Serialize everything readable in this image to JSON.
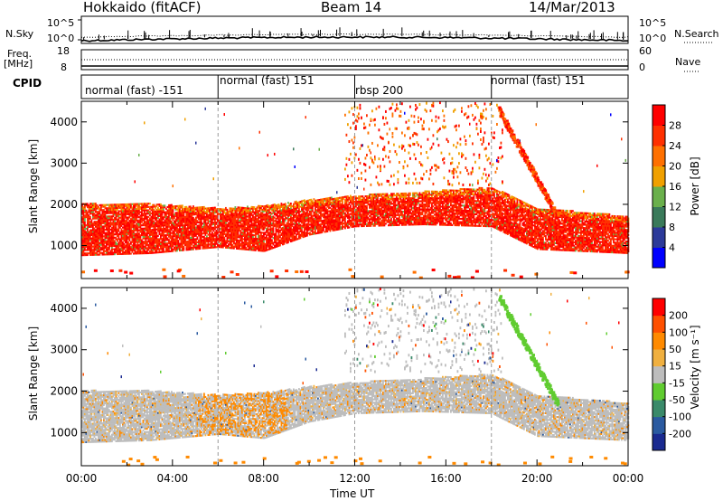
{
  "header": {
    "radar": "Hokkaido (fitACF)",
    "beam": "Beam 14",
    "date": "14/Mar/2013"
  },
  "noise_panel": {
    "left_label": "N.Sky",
    "right_label": "N.Search",
    "left_ticks": [
      "10^5",
      "10^0"
    ],
    "right_ticks": [
      "10^5",
      "10^0"
    ]
  },
  "freq_panel": {
    "left_label": "Freq.",
    "left_unit": "[MHz]",
    "right_label": "Nave",
    "left_ticks": [
      "18",
      "8"
    ],
    "right_ticks": [
      "60",
      "0"
    ]
  },
  "cpid": {
    "label": "CPID",
    "segments": [
      {
        "name": "normal (fast) -151",
        "start_hour": 0,
        "end_hour": 6
      },
      {
        "name": "normal (fast) 151",
        "start_hour": 6,
        "end_hour": 12
      },
      {
        "name": "rbsp 200",
        "start_hour": 12,
        "end_hour": 18
      },
      {
        "name": "normal (fast) 151",
        "start_hour": 18,
        "end_hour": 24
      }
    ]
  },
  "colors": {
    "power_scale": [
      "#0000ff",
      "#2c3a9a",
      "#3a7a5a",
      "#6ab04c",
      "#f0a000",
      "#ff7000",
      "#ff3000",
      "#ff0000"
    ],
    "velocity_scale": [
      "#ff0000",
      "#ff5000",
      "#ff8a00",
      "#f0b040",
      "#bdbdbd",
      "#60cc30",
      "#3a8a6a",
      "#2a5aa0",
      "#1a2a90"
    ],
    "ground_scatter": "#bdbdbd"
  },
  "chart_data": [
    {
      "type": "heatmap",
      "title": "Power",
      "xlabel": "Time UT",
      "ylabel": "Slant Range [km]",
      "x_range": [
        0,
        24
      ],
      "y_range": [
        200,
        4500
      ],
      "x_tick_labels": [
        "00:00",
        "04:00",
        "08:00",
        "12:00",
        "16:00",
        "20:00",
        "00:00"
      ],
      "y_tick_labels": [
        "1000",
        "2000",
        "3000",
        "4000"
      ],
      "colorbar_label": "Power [dB]",
      "colorbar_ticks": [
        "28",
        "24",
        "20",
        "16",
        "12",
        "8",
        "4"
      ],
      "dashed_verticals_hours": [
        6,
        12,
        18
      ],
      "main_band": [
        {
          "hour": 0,
          "low": 750,
          "high": 2000
        },
        {
          "hour": 3,
          "low": 800,
          "high": 2000
        },
        {
          "hour": 6,
          "low": 950,
          "high": 1900
        },
        {
          "hour": 8,
          "low": 850,
          "high": 1950
        },
        {
          "hour": 10,
          "low": 1250,
          "high": 2100
        },
        {
          "hour": 12,
          "low": 1450,
          "high": 2200
        },
        {
          "hour": 15,
          "low": 1500,
          "high": 2300
        },
        {
          "hour": 18,
          "low": 1450,
          "high": 2400
        },
        {
          "hour": 20,
          "low": 900,
          "high": 1900
        },
        {
          "hour": 24,
          "low": 800,
          "high": 1700
        }
      ]
    },
    {
      "type": "heatmap",
      "title": "Velocity",
      "xlabel": "Time UT",
      "ylabel": "Slant Range [km]",
      "x_range": [
        0,
        24
      ],
      "y_range": [
        200,
        4500
      ],
      "x_tick_labels": [
        "00:00",
        "04:00",
        "08:00",
        "12:00",
        "16:00",
        "20:00",
        "00:00"
      ],
      "y_tick_labels": [
        "1000",
        "2000",
        "3000",
        "4000"
      ],
      "colorbar_label": "Velocity [m s⁻¹]",
      "colorbar_ticks": [
        "200",
        "100",
        "50",
        "15",
        "-15",
        "-50",
        "-100",
        "-200"
      ],
      "dashed_verticals_hours": [
        6,
        12,
        18
      ]
    }
  ]
}
